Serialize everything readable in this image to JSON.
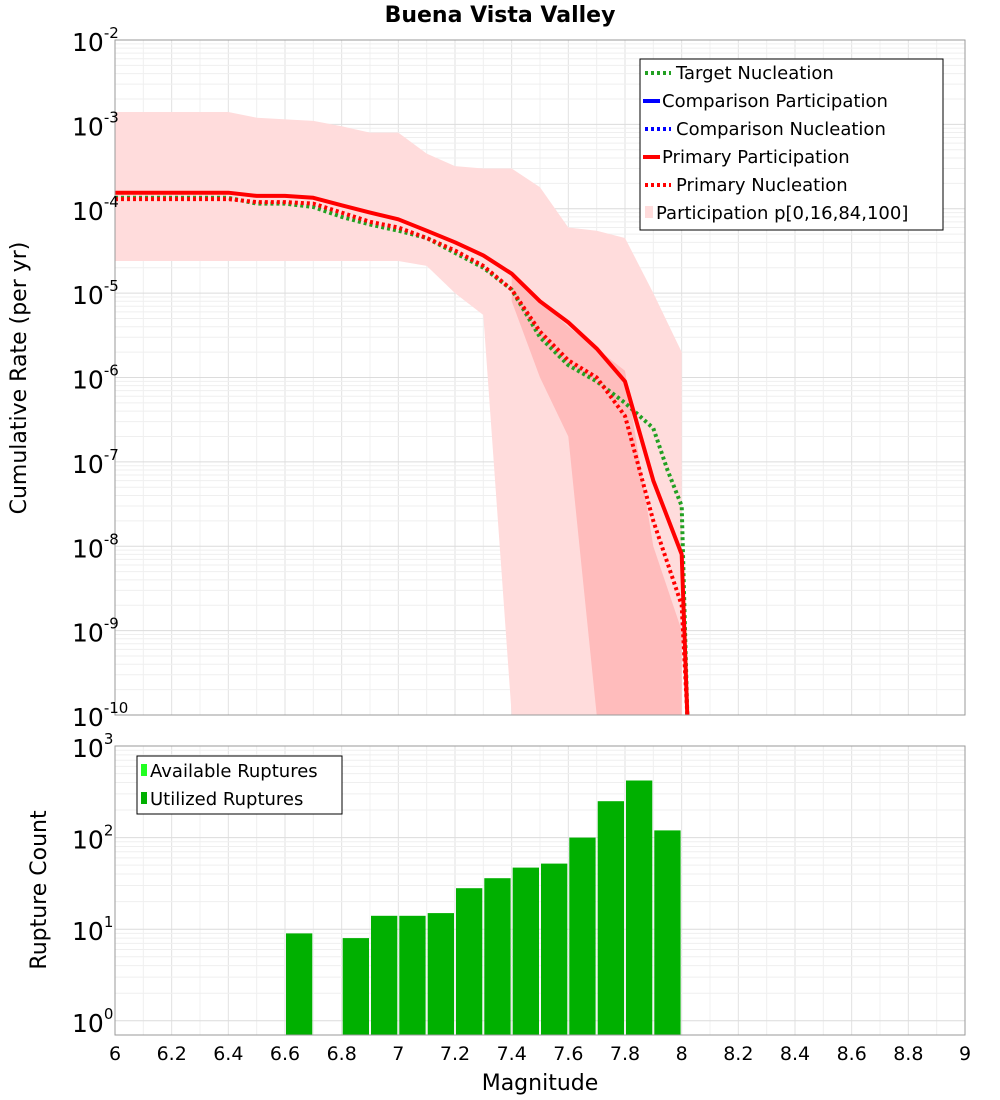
{
  "title": "Buena Vista Valley",
  "colors": {
    "target": "#22a022",
    "comparison": "#0000ff",
    "primary": "#ff0000",
    "band_outer": "#ffdcdc",
    "band_inner": "#ffbcbc",
    "available": "#22ff22",
    "utilized": "#00b000",
    "grid": "#e6e6e6"
  },
  "chart_data": [
    {
      "type": "line",
      "name": "cumulative-rate-plot",
      "title": "Buena Vista Valley",
      "xlabel": "",
      "ylabel": "Cumulative Rate (per yr)",
      "xlim": [
        6,
        9
      ],
      "ylim": [
        1e-10,
        0.01
      ],
      "yscale": "log",
      "ytick_labels": [
        {
          "value": 0.01,
          "base": "10",
          "exp": "-2"
        },
        {
          "value": 0.001,
          "base": "10",
          "exp": "-3"
        },
        {
          "value": 0.0001,
          "base": "10",
          "exp": "-4"
        },
        {
          "value": 1e-05,
          "base": "10",
          "exp": "-5"
        },
        {
          "value": 1e-06,
          "base": "10",
          "exp": "-6"
        },
        {
          "value": 1e-07,
          "base": "10",
          "exp": "-7"
        },
        {
          "value": 1e-08,
          "base": "10",
          "exp": "-8"
        },
        {
          "value": 1e-09,
          "base": "10",
          "exp": "-9"
        },
        {
          "value": 1e-10,
          "base": "10",
          "exp": "-10"
        }
      ],
      "legend": {
        "placement": "top-right",
        "entries": [
          {
            "label": "Target Nucleation",
            "style": "dotted",
            "color": "#22a022"
          },
          {
            "label": "Comparison Participation",
            "style": "solid",
            "color": "#0000ff"
          },
          {
            "label": "Comparison Nucleation",
            "style": "dotted",
            "color": "#0000ff"
          },
          {
            "label": "Primary Participation",
            "style": "solid",
            "color": "#ff0000"
          },
          {
            "label": "Primary Nucleation",
            "style": "dotted",
            "color": "#ff0000"
          },
          {
            "label": "Participation p[0,16,84,100]",
            "style": "box",
            "color": "#ffdcdc"
          }
        ]
      },
      "band_outer": {
        "name": "Participation p[0,100]",
        "x": [
          6.0,
          6.4,
          6.5,
          6.7,
          6.8,
          6.9,
          7.0,
          7.1,
          7.2,
          7.3,
          7.4,
          7.5,
          7.6,
          7.7,
          7.8,
          7.9,
          8.0
        ],
        "upper": [
          0.0014,
          0.0014,
          0.0012,
          0.0011,
          0.00095,
          0.0008,
          0.0008,
          0.00045,
          0.00032,
          0.0003,
          0.0003,
          0.00018,
          6e-05,
          5.5e-05,
          4.5e-05,
          1e-05,
          2e-06
        ],
        "lower": [
          2.4e-05,
          2.4e-05,
          2.4e-05,
          2.4e-05,
          2.4e-05,
          2.4e-05,
          2.4e-05,
          2.1e-05,
          1e-05,
          5.5e-06,
          1e-10,
          1e-10,
          1e-10,
          1e-10,
          1e-10,
          1e-10,
          1e-10
        ]
      },
      "band_inner": {
        "name": "Participation p[16,84]",
        "x": [
          7.4,
          7.5,
          7.6,
          7.7,
          7.8,
          7.9,
          8.0
        ],
        "upper": [
          1.7e-05,
          8e-06,
          4e-06,
          2.2e-06,
          1.2e-06,
          1e-08,
          1e-09
        ],
        "lower": [
          8e-06,
          1e-06,
          2e-07,
          1e-10,
          1e-10,
          1e-10,
          1e-10
        ]
      },
      "series": [
        {
          "name": "Primary Participation",
          "style": "solid",
          "color": "#ff0000",
          "x": [
            6.0,
            6.1,
            6.2,
            6.3,
            6.4,
            6.5,
            6.6,
            6.7,
            6.8,
            6.9,
            7.0,
            7.1,
            7.2,
            7.3,
            7.4,
            7.5,
            7.6,
            7.7,
            7.8,
            7.9,
            8.0,
            8.02
          ],
          "y": [
            0.000155,
            0.000155,
            0.000155,
            0.000155,
            0.000155,
            0.000142,
            0.000142,
            0.000135,
            0.00011,
            9e-05,
            7.5e-05,
            5.5e-05,
            4e-05,
            2.8e-05,
            1.7e-05,
            8e-06,
            4.5e-06,
            2.2e-06,
            9e-07,
            6e-08,
            8e-09,
            1e-10
          ]
        },
        {
          "name": "Primary Nucleation",
          "style": "dotted",
          "color": "#ff0000",
          "x": [
            6.0,
            6.1,
            6.2,
            6.3,
            6.4,
            6.5,
            6.6,
            6.7,
            6.8,
            6.9,
            7.0,
            7.1,
            7.2,
            7.3,
            7.4,
            7.5,
            7.6,
            7.7,
            7.8,
            7.9,
            8.0,
            8.02
          ],
          "y": [
            0.00013,
            0.00013,
            0.00013,
            0.00013,
            0.00013,
            0.00012,
            0.00012,
            0.000115,
            9e-05,
            7e-05,
            6e-05,
            4.5e-05,
            3.2e-05,
            2.1e-05,
            1.1e-05,
            3.5e-06,
            1.6e-06,
            1e-06,
            3.5e-07,
            2e-08,
            2e-09,
            1e-10
          ]
        },
        {
          "name": "Target Nucleation",
          "style": "dotted",
          "color": "#22a022",
          "x": [
            6.0,
            6.1,
            6.2,
            6.3,
            6.4,
            6.5,
            6.6,
            6.7,
            6.8,
            6.9,
            7.0,
            7.1,
            7.2,
            7.3,
            7.4,
            7.5,
            7.6,
            7.7,
            7.8,
            7.9,
            7.95,
            8.0,
            8.02
          ],
          "y": [
            0.000135,
            0.000135,
            0.000135,
            0.000135,
            0.000135,
            0.000115,
            0.000115,
            0.000105,
            8e-05,
            6.5e-05,
            5.5e-05,
            4.5e-05,
            3e-05,
            2e-05,
            1.1e-05,
            3e-06,
            1.4e-06,
            9e-07,
            5e-07,
            2.5e-07,
            8e-08,
            3e-08,
            1e-10
          ]
        }
      ]
    },
    {
      "type": "bar",
      "name": "rupture-count-plot",
      "xlabel": "Magnitude",
      "ylabel": "Rupture Count",
      "xlim": [
        6,
        9
      ],
      "ylim": [
        0.7,
        1000
      ],
      "yscale": "log",
      "xticks": [
        "6",
        "6.2",
        "6.4",
        "6.6",
        "6.8",
        "7",
        "7.2",
        "7.4",
        "7.6",
        "7.8",
        "8",
        "8.2",
        "8.4",
        "8.6",
        "8.8",
        "9"
      ],
      "ytick_labels": [
        {
          "value": 1000,
          "base": "10",
          "exp": "3"
        },
        {
          "value": 100,
          "base": "10",
          "exp": "2"
        },
        {
          "value": 10,
          "base": "10",
          "exp": "1"
        },
        {
          "value": 1,
          "base": "10",
          "exp": "0"
        }
      ],
      "legend": {
        "placement": "top-left",
        "entries": [
          {
            "label": "Available Ruptures",
            "color": "#22ff22"
          },
          {
            "label": "Utilized Ruptures",
            "color": "#00b000"
          }
        ]
      },
      "bin_starts": [
        6.6,
        6.8,
        6.9,
        7.0,
        7.1,
        7.2,
        7.3,
        7.4,
        7.5,
        7.6,
        7.7,
        7.8,
        7.9
      ],
      "bin_width": 0.1,
      "values": [
        9,
        8,
        14,
        14,
        15,
        28,
        36,
        47,
        52,
        100,
        250,
        420,
        120
      ]
    }
  ]
}
